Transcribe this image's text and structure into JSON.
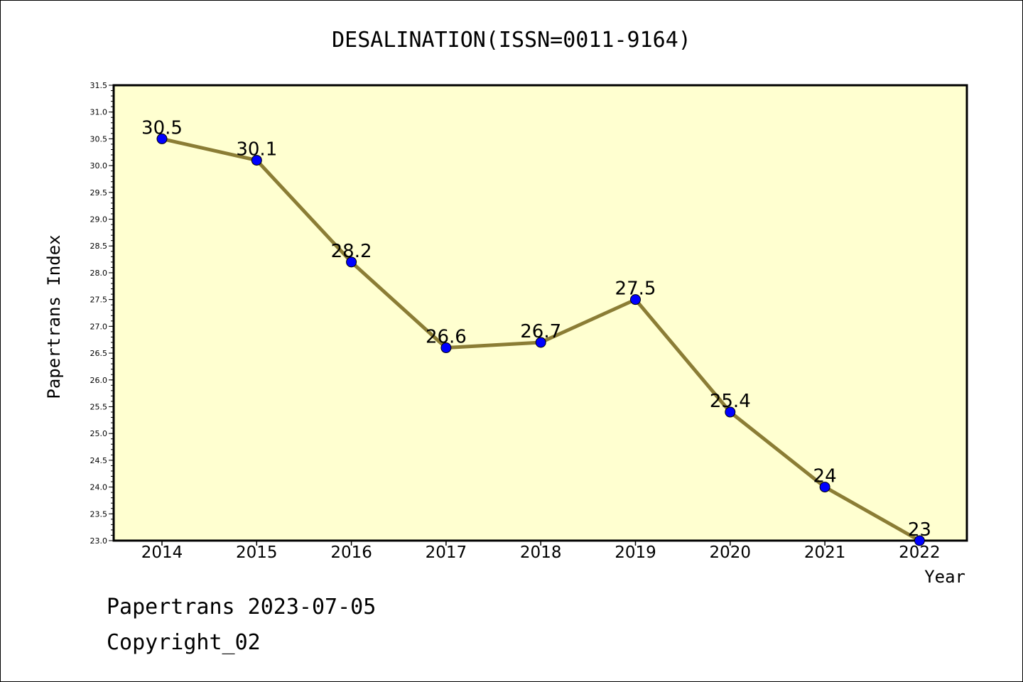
{
  "chart_data": {
    "type": "line",
    "title": "DESALINATION(ISSN=0011-9164)",
    "xlabel": "Year",
    "ylabel": "Papertrans Index",
    "categories": [
      "2014",
      "2015",
      "2016",
      "2017",
      "2018",
      "2019",
      "2020",
      "2021",
      "2022"
    ],
    "series": [
      {
        "values": [
          30.5,
          30.1,
          28.2,
          26.6,
          26.7,
          27.5,
          25.4,
          24,
          23
        ],
        "data_labels": [
          "30.5",
          "30.1",
          "28.2",
          "26.6",
          "26.7",
          "27.5",
          "25.4",
          "24",
          "23"
        ]
      }
    ],
    "ylim": [
      23.0,
      31.5
    ],
    "yticks": [
      "23.0",
      "23.5",
      "24.0",
      "24.5",
      "25.0",
      "25.5",
      "26.0",
      "26.5",
      "27.0",
      "27.5",
      "28.0",
      "28.5",
      "29.0",
      "29.5",
      "30.0",
      "30.5",
      "31.0",
      "31.5"
    ],
    "grid": false,
    "colors": {
      "plot_background": "#ffffd0",
      "line": "#8b7d35",
      "marker": "#0000ff"
    }
  },
  "footer": {
    "stamp": "Papertrans 2023-07-05",
    "copyright": "Copyright_02"
  }
}
